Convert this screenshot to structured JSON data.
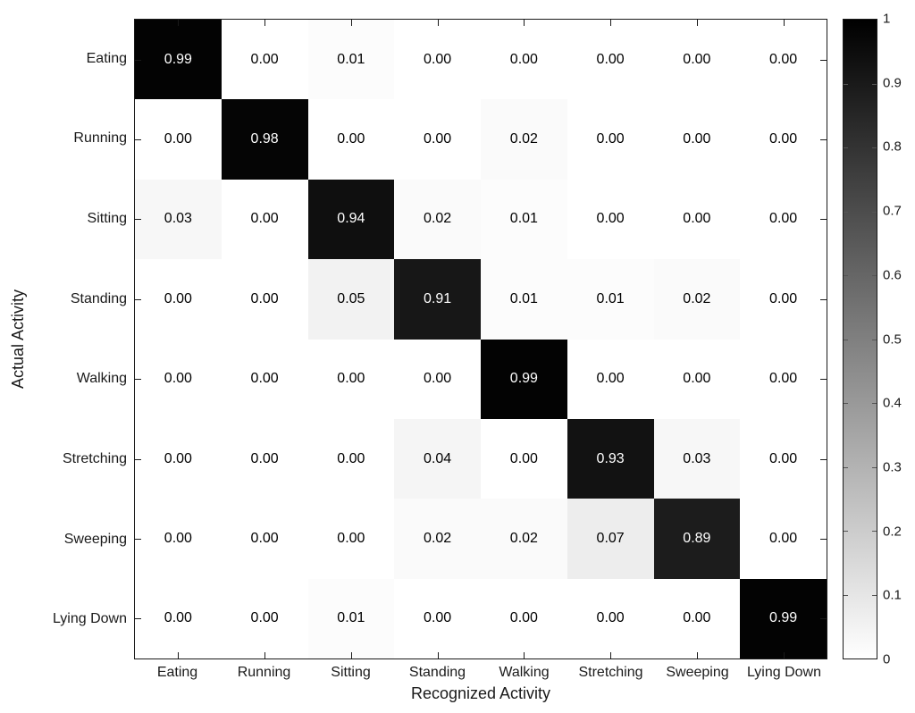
{
  "figure": {
    "background": "#ffffff",
    "axis_color": "#1a1a1a"
  },
  "chart_data": {
    "type": "heatmap",
    "title": "",
    "xlabel": "Recognized Activity",
    "ylabel": "Actual Activity",
    "x_categories": [
      "Eating",
      "Running",
      "Sitting",
      "Standing",
      "Walking",
      "Stretching",
      "Sweeping",
      "Lying Down"
    ],
    "y_categories": [
      "Eating",
      "Running",
      "Sitting",
      "Standing",
      "Walking",
      "Stretching",
      "Sweeping",
      "Lying Down"
    ],
    "matrix": [
      [
        0.99,
        0.0,
        0.01,
        0.0,
        0.0,
        0.0,
        0.0,
        0.0
      ],
      [
        0.0,
        0.98,
        0.0,
        0.0,
        0.02,
        0.0,
        0.0,
        0.0
      ],
      [
        0.03,
        0.0,
        0.94,
        0.02,
        0.01,
        0.0,
        0.0,
        0.0
      ],
      [
        0.0,
        0.0,
        0.05,
        0.91,
        0.01,
        0.01,
        0.02,
        0.0
      ],
      [
        0.0,
        0.0,
        0.0,
        0.0,
        0.99,
        0.0,
        0.0,
        0.0
      ],
      [
        0.0,
        0.0,
        0.0,
        0.04,
        0.0,
        0.93,
        0.03,
        0.0
      ],
      [
        0.0,
        0.0,
        0.0,
        0.02,
        0.02,
        0.07,
        0.89,
        0.0
      ],
      [
        0.0,
        0.0,
        0.01,
        0.0,
        0.0,
        0.0,
        0.0,
        0.99
      ]
    ],
    "value_decimals": 2,
    "colormap": {
      "min_value": 0,
      "max_value": 1,
      "min_color": "#ffffff",
      "max_color": "#000000"
    },
    "cell_text_color_low": "#000000",
    "cell_text_color_high": "#ffffff",
    "colorbar": {
      "position": "right",
      "ticks": [
        {
          "value": 1.0,
          "label": "1"
        },
        {
          "value": 0.9,
          "label": "0.9"
        },
        {
          "value": 0.8,
          "label": "0.8"
        },
        {
          "value": 0.7,
          "label": "0.7"
        },
        {
          "value": 0.6,
          "label": "0.6"
        },
        {
          "value": 0.5,
          "label": "0.5"
        },
        {
          "value": 0.4,
          "label": "0.4"
        },
        {
          "value": 0.3,
          "label": "0.3"
        },
        {
          "value": 0.2,
          "label": "0.2"
        },
        {
          "value": 0.1,
          "label": "0.1"
        },
        {
          "value": 0.0,
          "label": "0"
        }
      ]
    },
    "grid": false,
    "legend_position": "none"
  }
}
